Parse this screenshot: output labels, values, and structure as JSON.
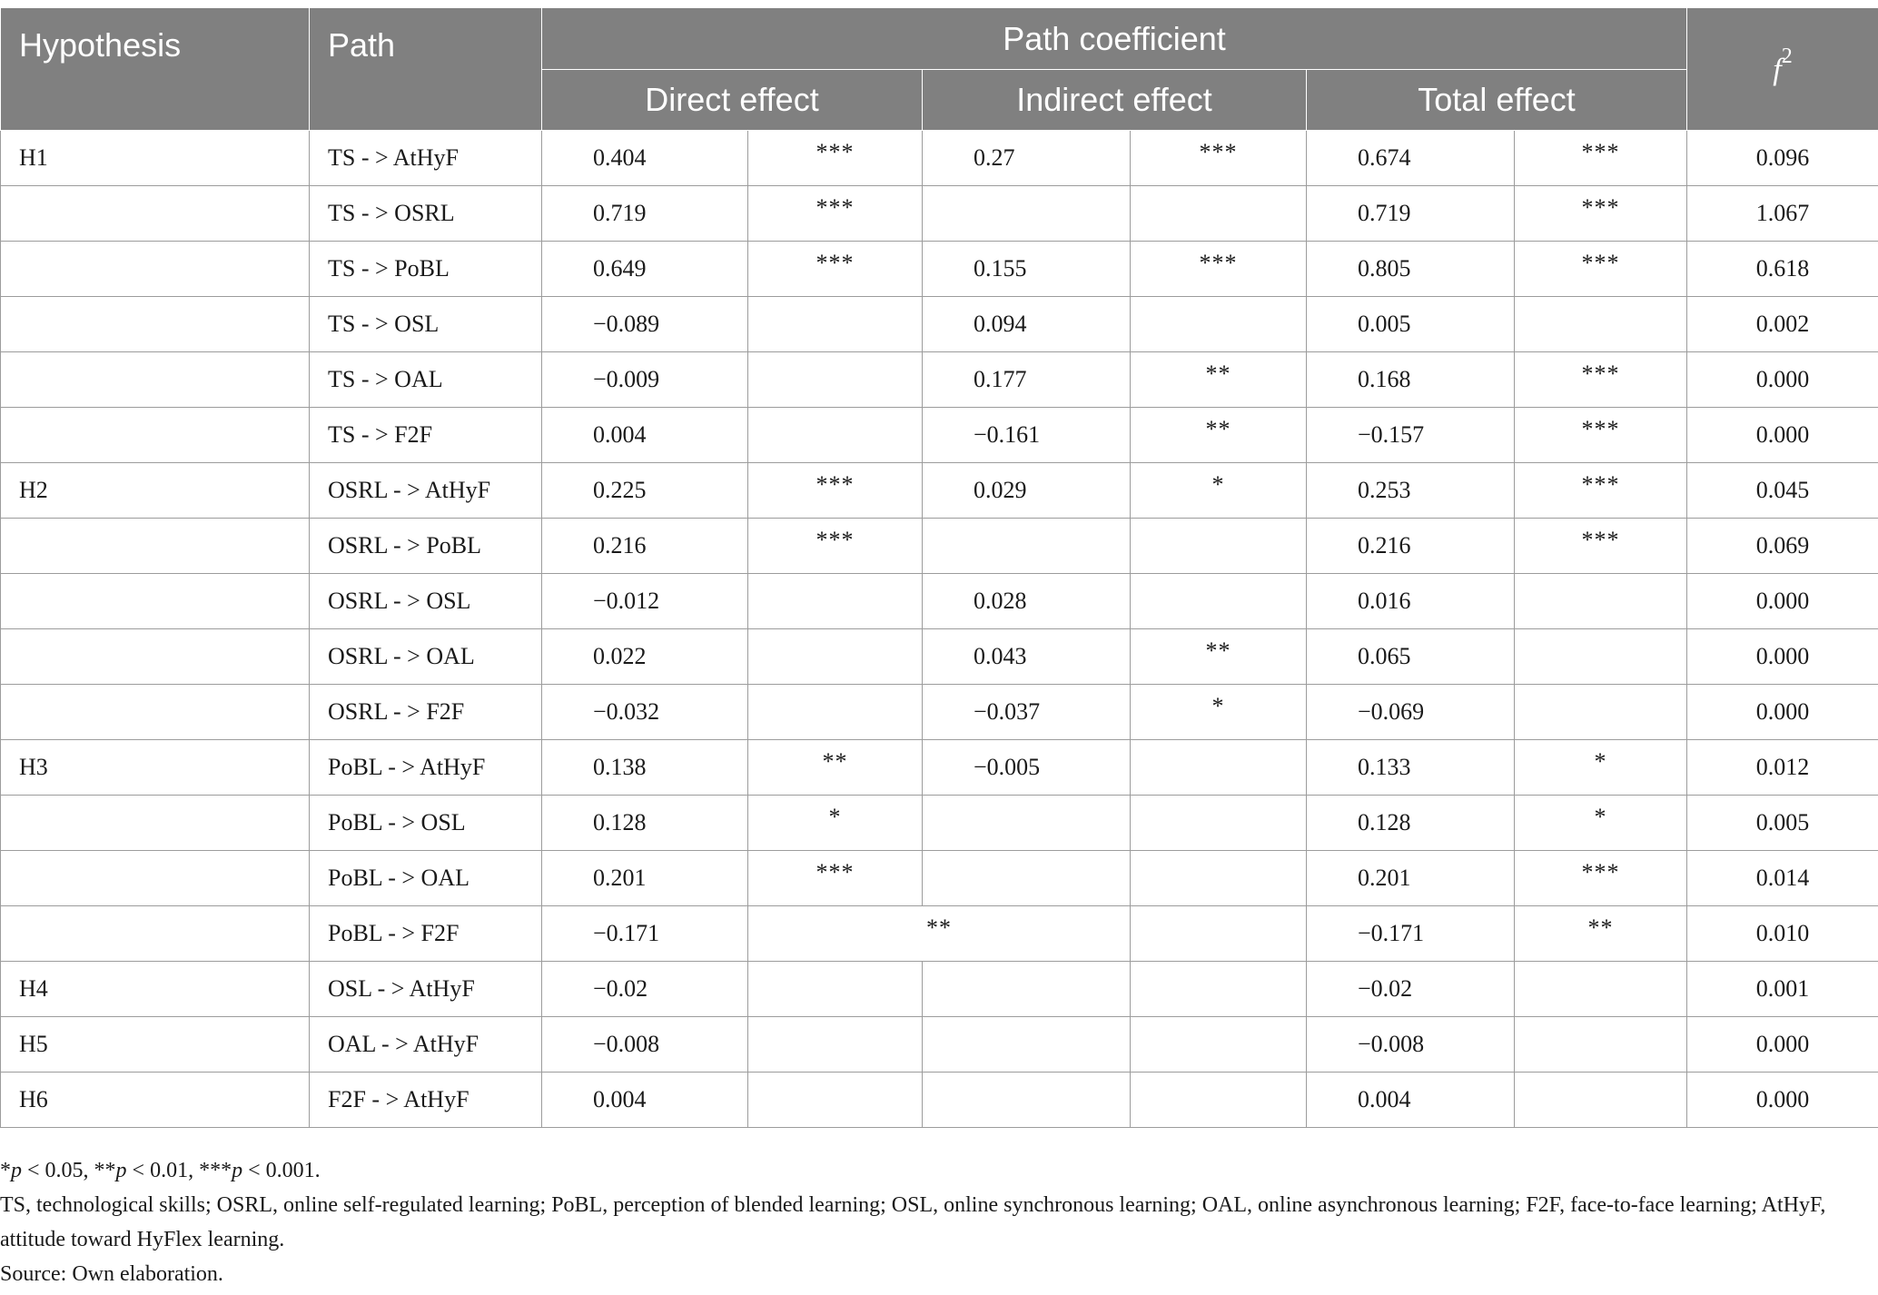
{
  "header": {
    "hypothesis": "Hypothesis",
    "path": "Path",
    "path_coefficient": "Path coefficient",
    "direct_effect": "Direct effect",
    "indirect_effect": "Indirect effect",
    "total_effect": "Total effect",
    "f2_base": "f",
    "f2_exp": "2"
  },
  "rows": [
    {
      "hyp": "H1",
      "path": "TS - > AtHyF",
      "direct": "0.404",
      "direct_sig": "***",
      "indirect": "0.27",
      "indirect_sig": "***",
      "total": "0.674",
      "total_sig": "***",
      "f2": "0.096"
    },
    {
      "hyp": "",
      "path": "TS - > OSRL",
      "direct": "0.719",
      "direct_sig": "***",
      "indirect": "",
      "indirect_sig": "",
      "total": "0.719",
      "total_sig": "***",
      "f2": "1.067"
    },
    {
      "hyp": "",
      "path": "TS - > PoBL",
      "direct": "0.649",
      "direct_sig": "***",
      "indirect": "0.155",
      "indirect_sig": "***",
      "total": "0.805",
      "total_sig": "***",
      "f2": "0.618"
    },
    {
      "hyp": "",
      "path": "TS - > OSL",
      "direct": "−0.089",
      "direct_sig": "",
      "indirect": "0.094",
      "indirect_sig": "",
      "total": "0.005",
      "total_sig": "",
      "f2": "0.002"
    },
    {
      "hyp": "",
      "path": "TS - > OAL",
      "direct": "−0.009",
      "direct_sig": "",
      "indirect": "0.177",
      "indirect_sig": "**",
      "total": "0.168",
      "total_sig": "***",
      "f2": "0.000"
    },
    {
      "hyp": "",
      "path": "TS - > F2F",
      "direct": "0.004",
      "direct_sig": "",
      "indirect": "−0.161",
      "indirect_sig": "**",
      "total": "−0.157",
      "total_sig": "***",
      "f2": "0.000"
    },
    {
      "hyp": "H2",
      "path": "OSRL - > AtHyF",
      "direct": "0.225",
      "direct_sig": "***",
      "indirect": "0.029",
      "indirect_sig": "*",
      "total": "0.253",
      "total_sig": "***",
      "f2": "0.045"
    },
    {
      "hyp": "",
      "path": "OSRL - > PoBL",
      "direct": "0.216",
      "direct_sig": "***",
      "indirect": "",
      "indirect_sig": "",
      "total": "0.216",
      "total_sig": "***",
      "f2": "0.069"
    },
    {
      "hyp": "",
      "path": "OSRL - > OSL",
      "direct": "−0.012",
      "direct_sig": "",
      "indirect": "0.028",
      "indirect_sig": "",
      "total": "0.016",
      "total_sig": "",
      "f2": "0.000"
    },
    {
      "hyp": "",
      "path": "OSRL - > OAL",
      "direct": "0.022",
      "direct_sig": "",
      "indirect": "0.043",
      "indirect_sig": "**",
      "total": "0.065",
      "total_sig": "",
      "f2": "0.000"
    },
    {
      "hyp": "",
      "path": "OSRL - > F2F",
      "direct": "−0.032",
      "direct_sig": "",
      "indirect": "−0.037",
      "indirect_sig": "*",
      "total": "−0.069",
      "total_sig": "",
      "f2": "0.000"
    },
    {
      "hyp": "H3",
      "path": "PoBL - > AtHyF",
      "direct": "0.138",
      "direct_sig": "**",
      "indirect": "−0.005",
      "indirect_sig": "",
      "total": "0.133",
      "total_sig": "*",
      "f2": "0.012"
    },
    {
      "hyp": "",
      "path": "PoBL - > OSL",
      "direct": "0.128",
      "direct_sig": "*",
      "indirect": "",
      "indirect_sig": "",
      "total": "0.128",
      "total_sig": "*",
      "f2": "0.005"
    },
    {
      "hyp": "",
      "path": "PoBL - > OAL",
      "direct": "0.201",
      "direct_sig": "***",
      "indirect": "",
      "indirect_sig": "",
      "total": "0.201",
      "total_sig": "***",
      "f2": "0.014"
    },
    {
      "hyp": "",
      "path": "PoBL - > F2F",
      "direct": "−0.171",
      "merged_sig": "**",
      "indirect_sig": "",
      "total": "−0.171",
      "total_sig": "**",
      "f2": "0.010"
    },
    {
      "hyp": "H4",
      "path": "OSL - > AtHyF",
      "direct": "−0.02",
      "direct_sig": "",
      "indirect": "",
      "indirect_sig": "",
      "total": "−0.02",
      "total_sig": "",
      "f2": "0.001"
    },
    {
      "hyp": "H5",
      "path": "OAL - > AtHyF",
      "direct": "−0.008",
      "direct_sig": "",
      "indirect": "",
      "indirect_sig": "",
      "total": "−0.008",
      "total_sig": "",
      "f2": "0.000"
    },
    {
      "hyp": "H6",
      "path": "F2F - > AtHyF",
      "direct": "0.004",
      "direct_sig": "",
      "indirect": "",
      "indirect_sig": "",
      "total": "0.004",
      "total_sig": "",
      "f2": "0.000"
    }
  ],
  "notes": {
    "sig_a1": "*",
    "sig_p1": "p",
    "sig_t1": " < 0.05, **",
    "sig_p2": "p",
    "sig_t2": " < 0.01, ***",
    "sig_p3": "p",
    "sig_t3": " < 0.001.",
    "abbreviations": "TS, technological skills; OSRL, online self-regulated learning; PoBL, perception of blended learning; OSL, online synchronous learning; OAL, online asynchronous learning; F2F, face-to-face learning; AtHyF, attitude toward HyFlex learning.",
    "source": "Source: Own elaboration."
  }
}
